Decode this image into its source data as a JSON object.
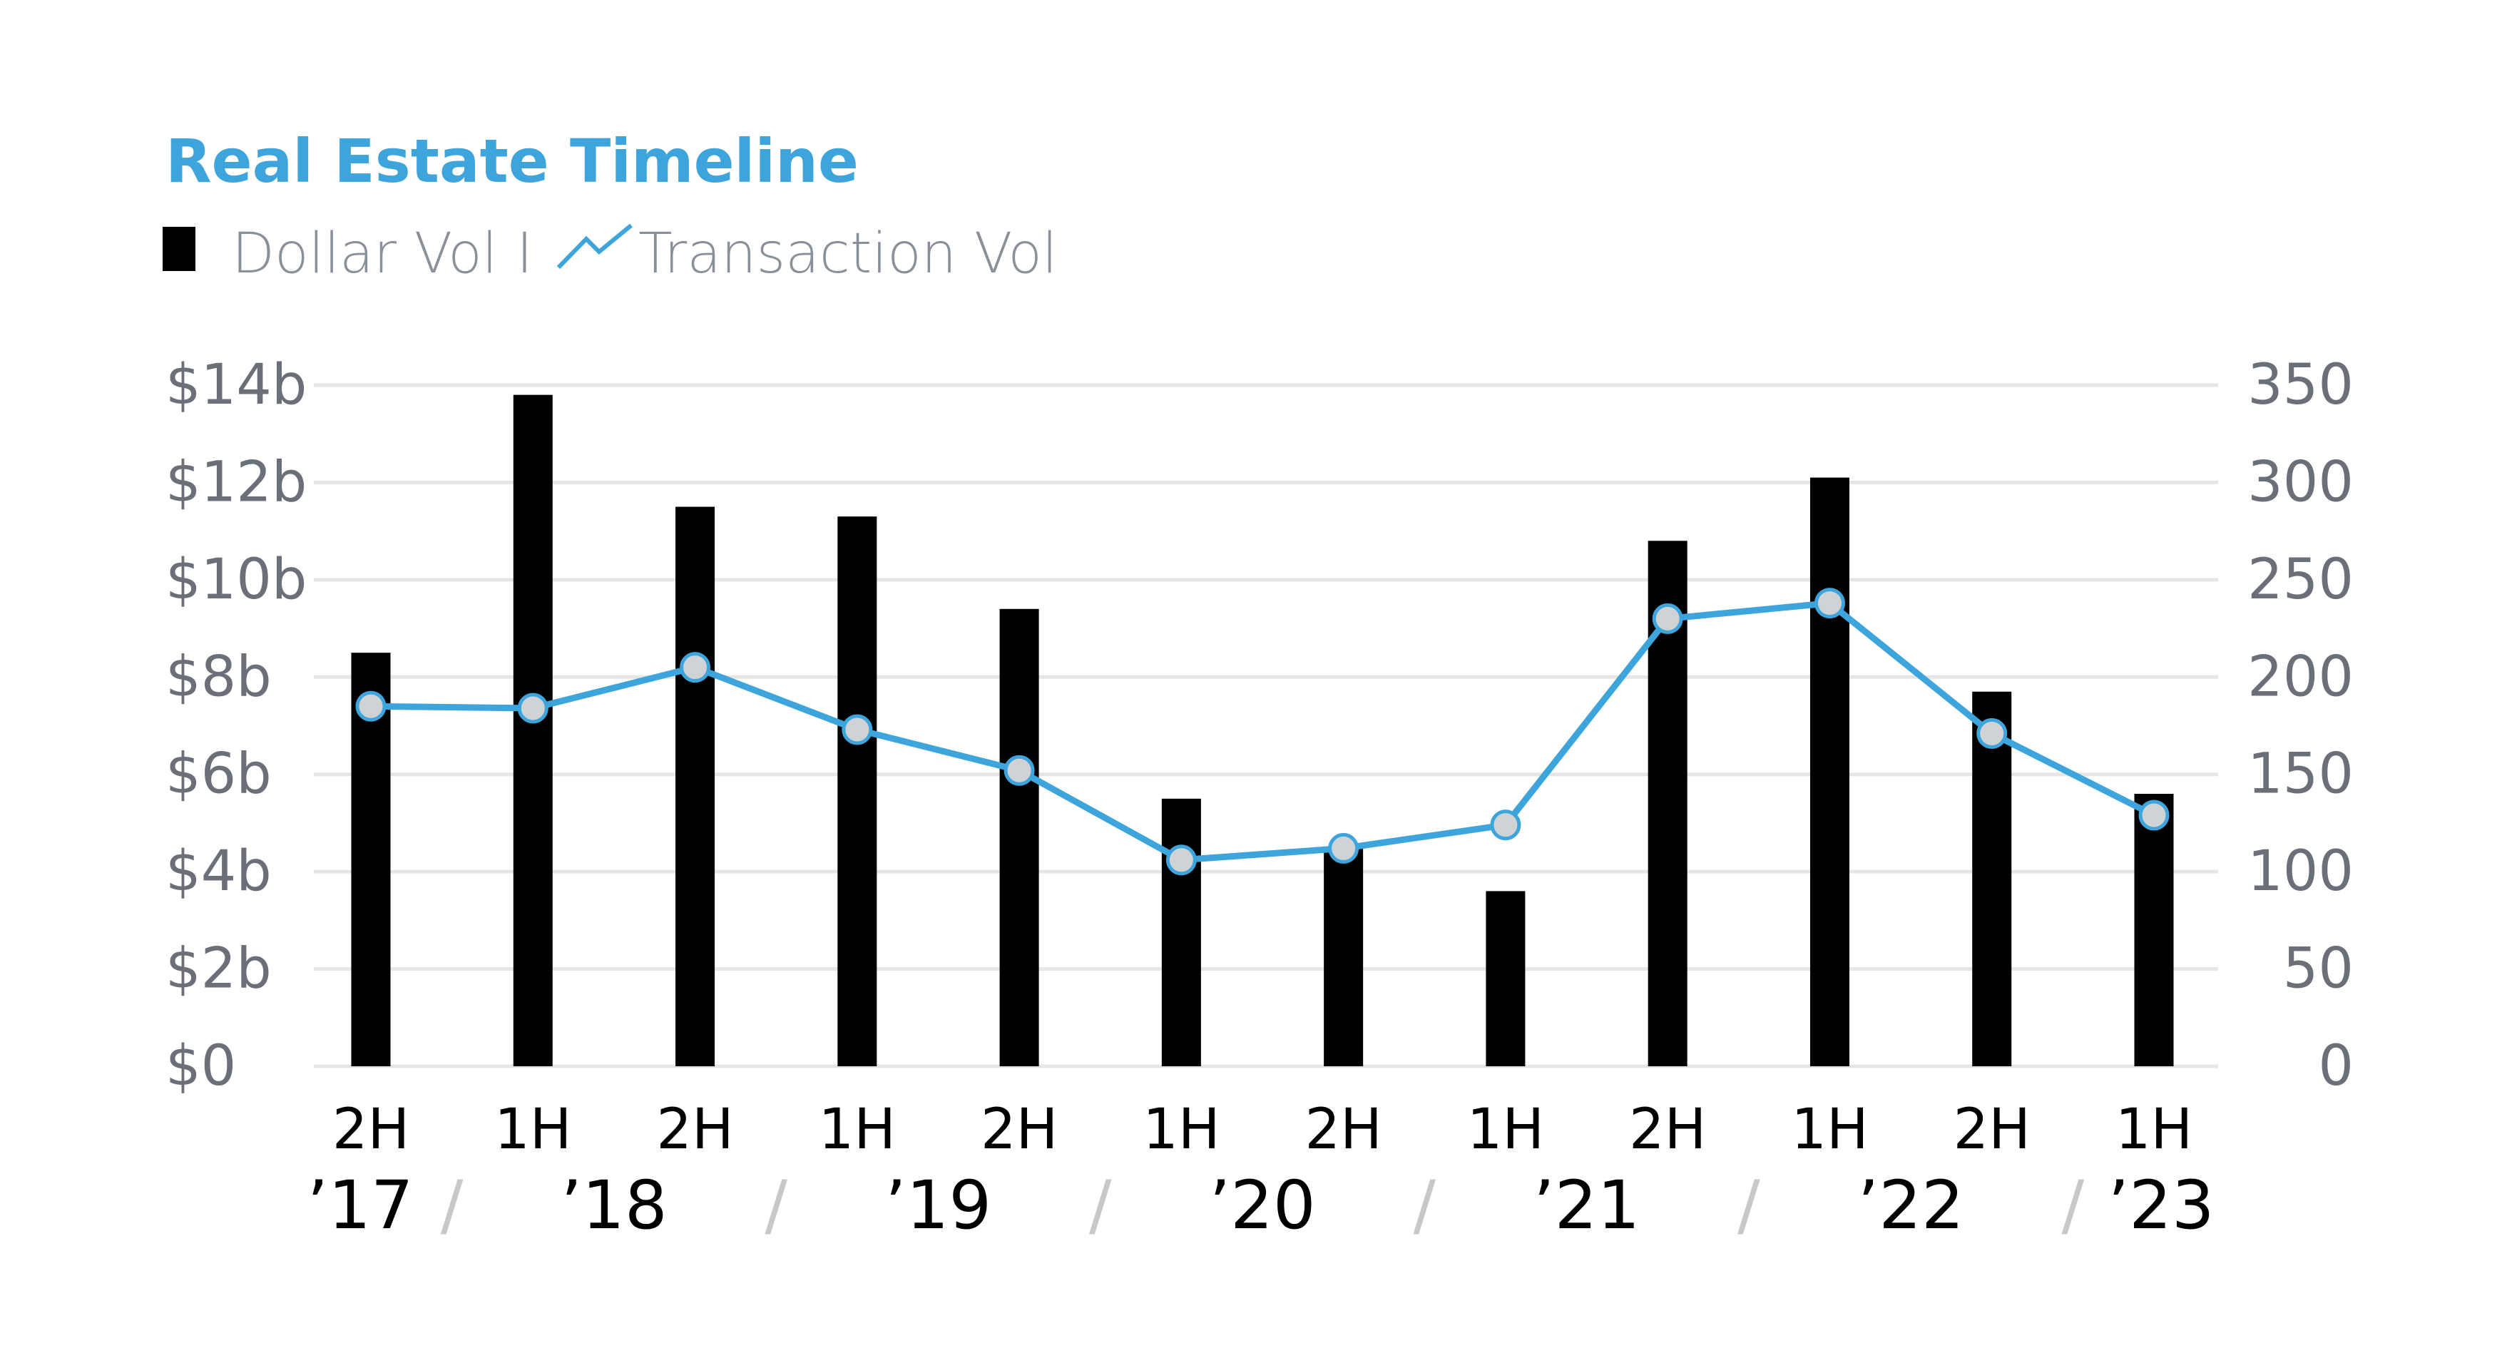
{
  "chart_data": {
    "type": "bar+line",
    "title": "Real Estate Timeline",
    "legend": {
      "bar_label": "Dollar Vol",
      "separator": "I",
      "line_label": "Transaction Vol"
    },
    "categories": [
      "2H",
      "1H",
      "2H",
      "1H",
      "2H",
      "1H",
      "2H",
      "1H",
      "2H",
      "1H",
      "2H",
      "1H"
    ],
    "year_groups": [
      {
        "label": "’17",
        "start": 0,
        "end": 0
      },
      {
        "label": "’18",
        "start": 1,
        "end": 2
      },
      {
        "label": "’19",
        "start": 3,
        "end": 4
      },
      {
        "label": "’20",
        "start": 5,
        "end": 6
      },
      {
        "label": "’21",
        "start": 7,
        "end": 8
      },
      {
        "label": "’22",
        "start": 9,
        "end": 10
      },
      {
        "label": "’23",
        "start": 11,
        "end": 11
      }
    ],
    "year_separator": "/",
    "series": [
      {
        "name": "Dollar Vol",
        "type": "bar",
        "axis": "left",
        "values": [
          8.5,
          13.8,
          11.5,
          11.3,
          9.4,
          5.5,
          4.5,
          3.6,
          10.8,
          12.1,
          7.7,
          5.6
        ]
      },
      {
        "name": "Transaction Vol",
        "type": "line",
        "axis": "right",
        "values": [
          185,
          184,
          205,
          173,
          152,
          106,
          112,
          124,
          230,
          238,
          171,
          129
        ]
      }
    ],
    "left_axis": {
      "range": [
        0,
        14
      ],
      "ticks": [
        "$0",
        "$2b",
        "$4b",
        "$6b",
        "$8b",
        "$10b",
        "$12b",
        "$14b"
      ]
    },
    "right_axis": {
      "range": [
        0,
        350
      ],
      "ticks": [
        "0",
        "50",
        "100",
        "150",
        "200",
        "250",
        "300",
        "350"
      ]
    },
    "grid": true,
    "colors": {
      "bar": "#000000",
      "line": "#3da5dc",
      "marker_fill": "#d0d3d6",
      "grid": "#e6e6e6",
      "title": "#3da5dc",
      "legend_text": "#8a9099",
      "axis_text": "#6b7078",
      "separator": "#c8c8c8"
    }
  }
}
